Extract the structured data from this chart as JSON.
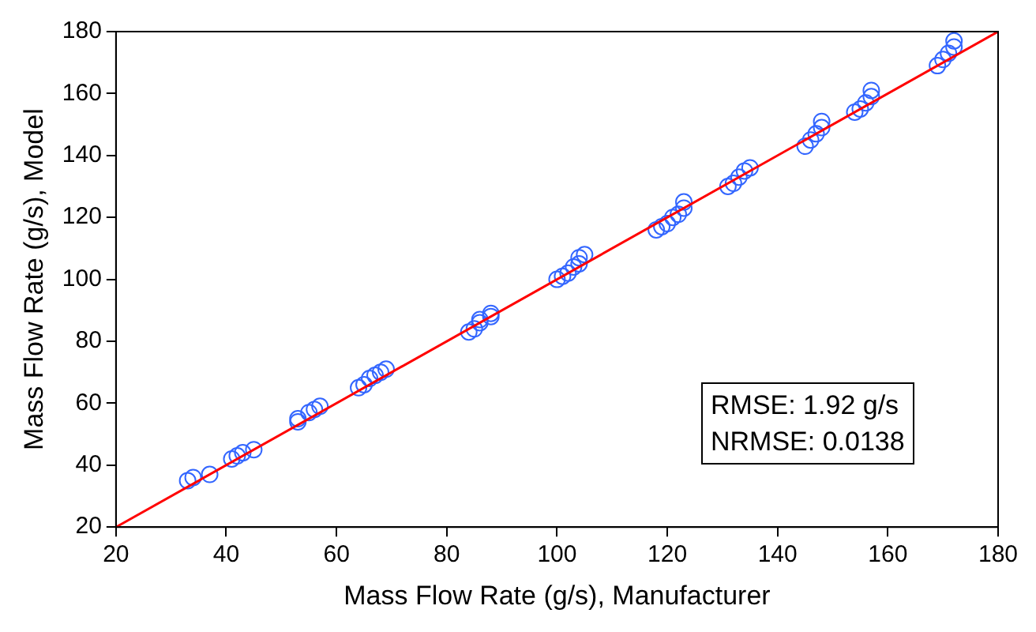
{
  "chart_data": {
    "type": "scatter",
    "xlabel": "Mass Flow Rate (g/s), Manufacturer",
    "ylabel": "Mass Flow Rate (g/s), Model",
    "xlim": [
      20,
      180
    ],
    "ylim": [
      20,
      180
    ],
    "xticks": [
      20,
      40,
      60,
      80,
      100,
      120,
      140,
      160,
      180
    ],
    "yticks": [
      20,
      40,
      60,
      80,
      100,
      120,
      140,
      160,
      180
    ],
    "grid": false,
    "legend": false,
    "series": [
      {
        "type": "scatter",
        "marker": "circle",
        "color": "#3366ff",
        "x": [
          33,
          34,
          37,
          41,
          42,
          43,
          45,
          53,
          53,
          55,
          56,
          57,
          64,
          65,
          66,
          67,
          68,
          69,
          84,
          85,
          86,
          86,
          88,
          88,
          100,
          101,
          102,
          103,
          104,
          104,
          105,
          118,
          119,
          120,
          121,
          122,
          123,
          123,
          131,
          132,
          133,
          134,
          135,
          145,
          146,
          147,
          148,
          148,
          154,
          155,
          156,
          157,
          157,
          169,
          170,
          171,
          172,
          172
        ],
        "values": [
          35,
          36,
          37,
          42,
          43,
          44,
          45,
          54,
          55,
          57,
          58,
          59,
          65,
          66,
          68,
          69,
          70,
          71,
          83,
          84,
          86,
          87,
          88,
          89,
          100,
          101,
          102,
          104,
          105,
          107,
          108,
          116,
          117,
          118,
          120,
          121,
          123,
          125,
          130,
          131,
          133,
          135,
          136,
          143,
          145,
          147,
          149,
          151,
          154,
          155,
          157,
          159,
          161,
          169,
          171,
          173,
          175,
          177
        ]
      },
      {
        "type": "line",
        "marker": "none",
        "color": "#ff0000",
        "x": [
          20,
          180
        ],
        "values": [
          20,
          180
        ]
      }
    ],
    "annotations": [
      "RMSE: 1.92 g/s",
      "NRMSE: 0.0138"
    ]
  }
}
